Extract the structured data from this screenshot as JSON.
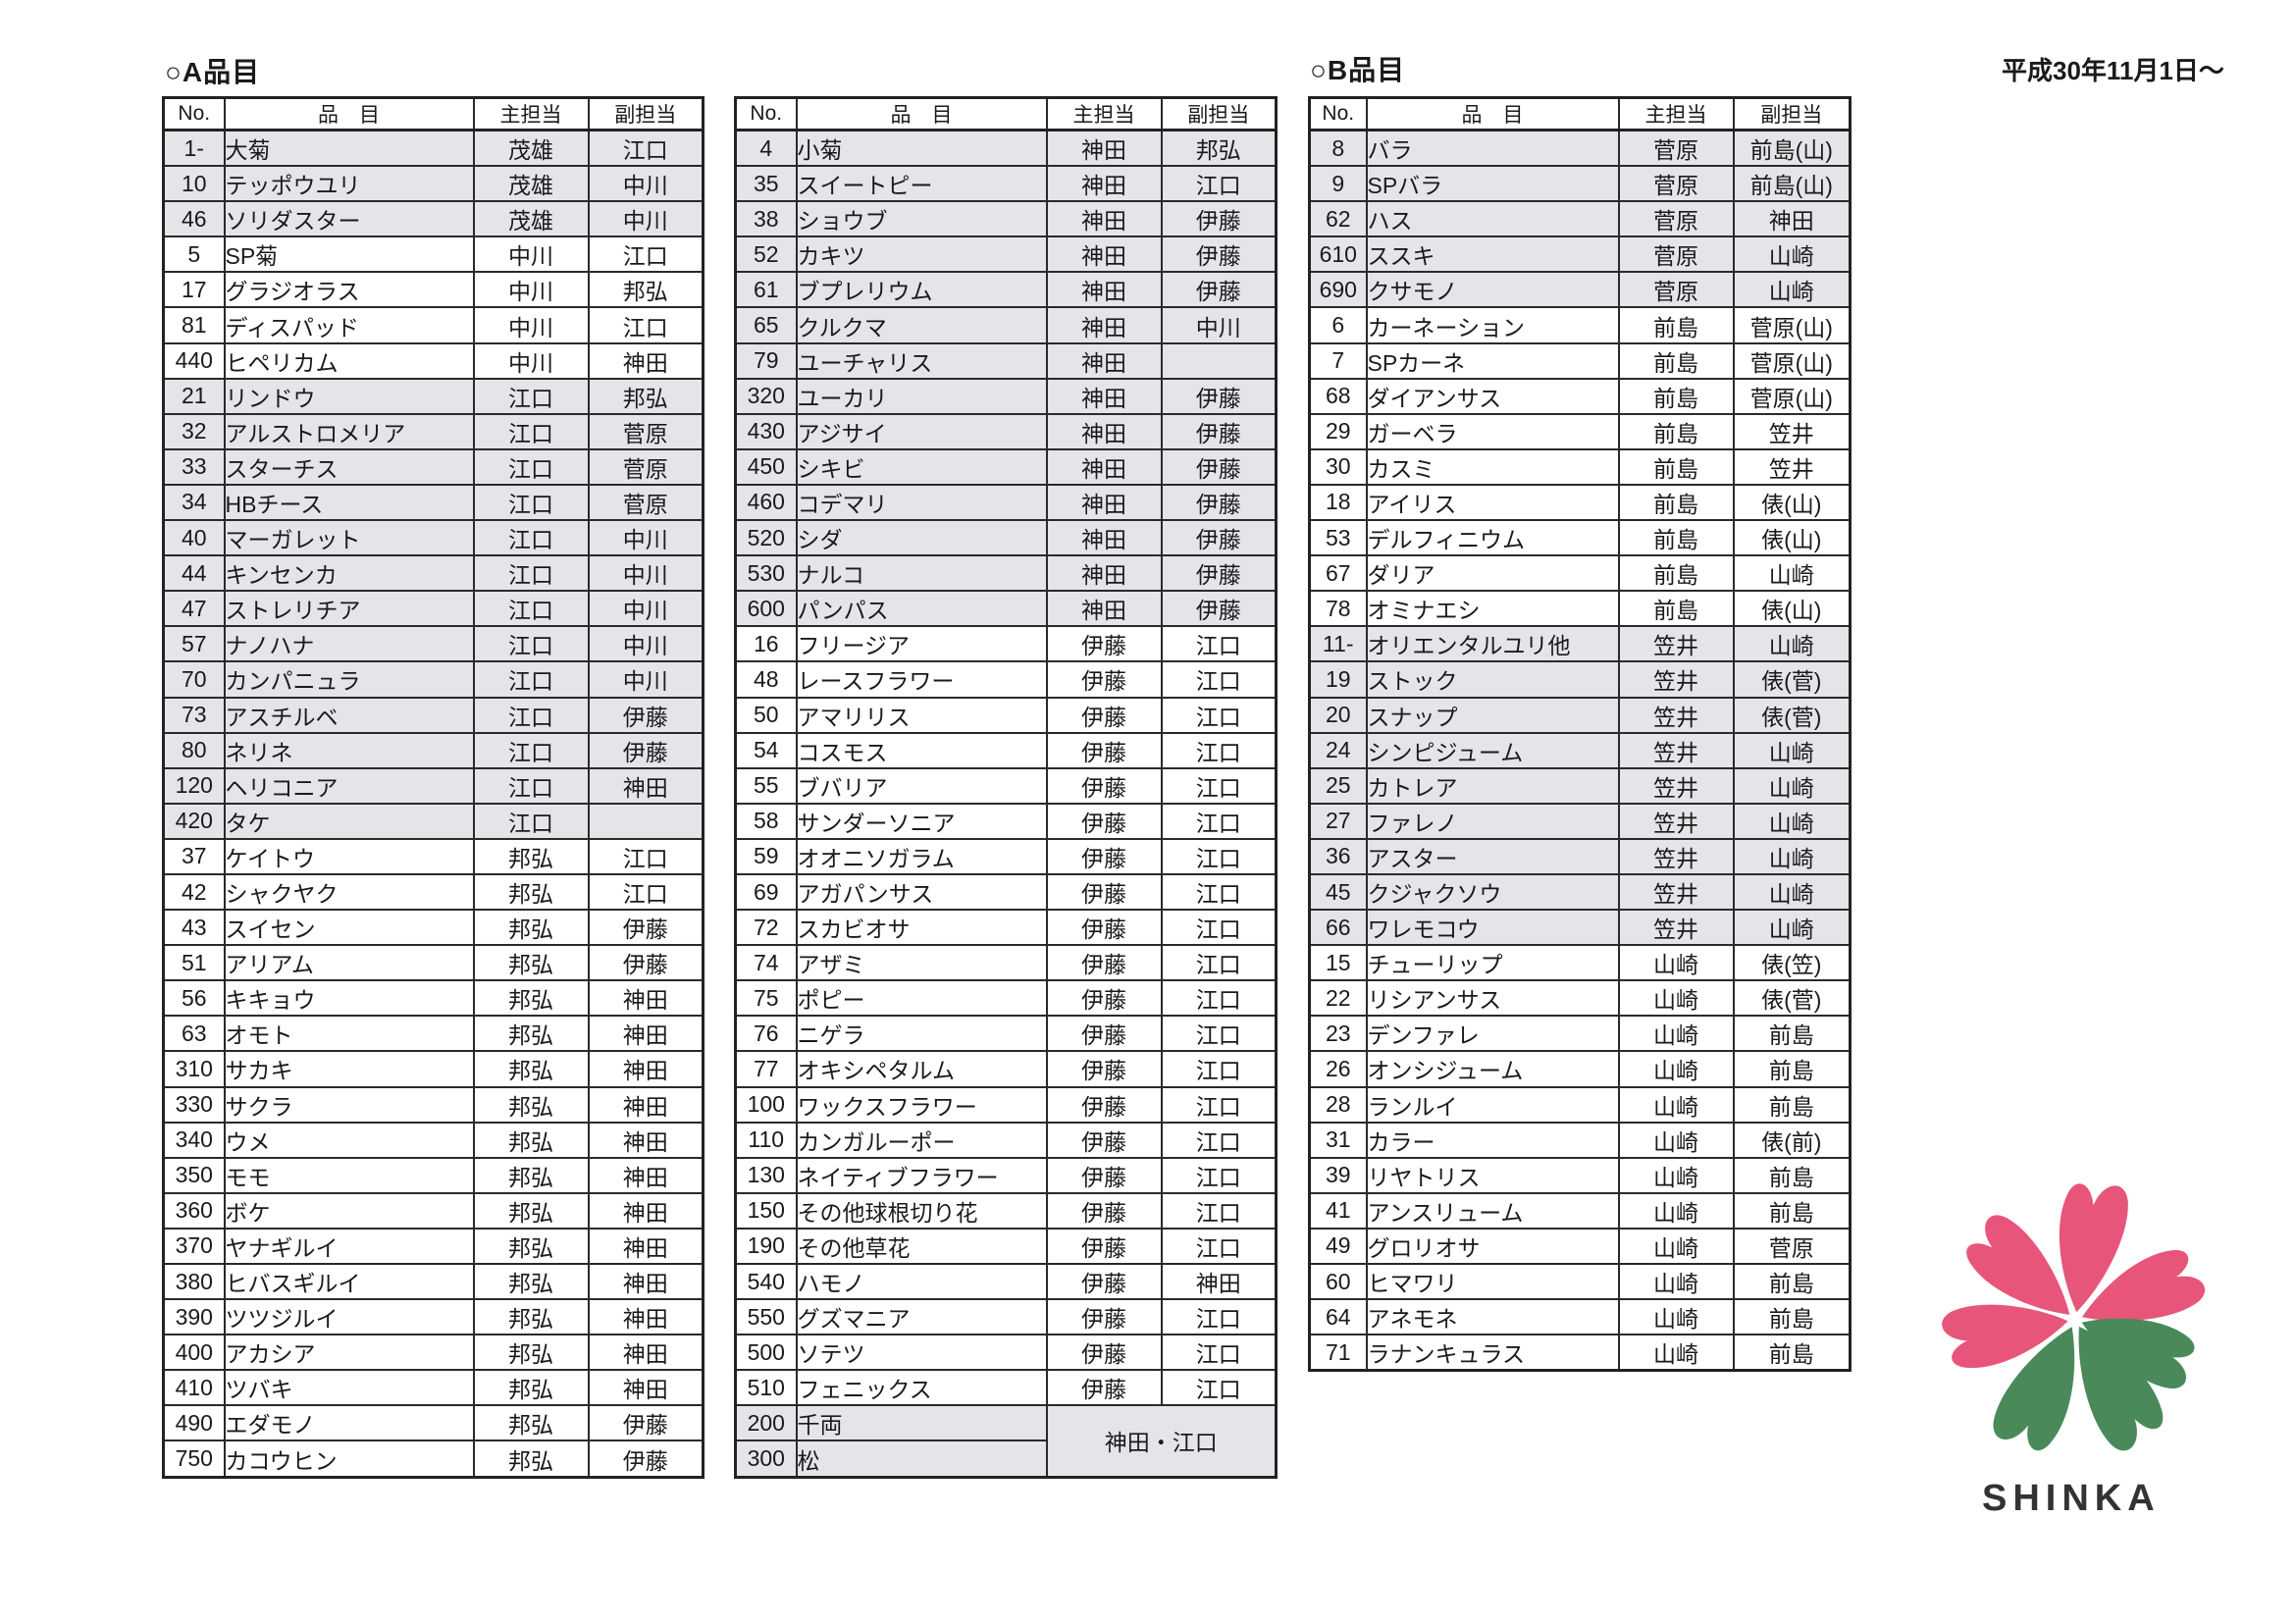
{
  "date_label": "平成30年11月1日～",
  "headers": [
    "No.",
    "品　目",
    "主担当",
    "副担当"
  ],
  "logo": {
    "text": "SHINKA",
    "colors": {
      "pink": "#e8557a",
      "green": "#4a8a5a"
    }
  },
  "tables": [
    {
      "title": "○A品目",
      "rows": [
        {
          "no": "1-",
          "item": "大菊",
          "main": "茂雄",
          "sub": "江口",
          "shaded": true
        },
        {
          "no": "10",
          "item": "テッポウユリ",
          "main": "茂雄",
          "sub": "中川",
          "shaded": true
        },
        {
          "no": "46",
          "item": "ソリダスター",
          "main": "茂雄",
          "sub": "中川",
          "shaded": true
        },
        {
          "no": "5",
          "item": "SP菊",
          "main": "中川",
          "sub": "江口",
          "shaded": false
        },
        {
          "no": "17",
          "item": "グラジオラス",
          "main": "中川",
          "sub": "邦弘",
          "shaded": false
        },
        {
          "no": "81",
          "item": "ディスパッド",
          "main": "中川",
          "sub": "江口",
          "shaded": false
        },
        {
          "no": "440",
          "item": "ヒペリカム",
          "main": "中川",
          "sub": "神田",
          "shaded": false
        },
        {
          "no": "21",
          "item": "リンドウ",
          "main": "江口",
          "sub": "邦弘",
          "shaded": true
        },
        {
          "no": "32",
          "item": "アルストロメリア",
          "main": "江口",
          "sub": "菅原",
          "shaded": true
        },
        {
          "no": "33",
          "item": "スターチス",
          "main": "江口",
          "sub": "菅原",
          "shaded": true
        },
        {
          "no": "34",
          "item": "HBチース",
          "main": "江口",
          "sub": "菅原",
          "shaded": true
        },
        {
          "no": "40",
          "item": "マーガレット",
          "main": "江口",
          "sub": "中川",
          "shaded": true
        },
        {
          "no": "44",
          "item": "キンセンカ",
          "main": "江口",
          "sub": "中川",
          "shaded": true
        },
        {
          "no": "47",
          "item": "ストレリチア",
          "main": "江口",
          "sub": "中川",
          "shaded": true
        },
        {
          "no": "57",
          "item": "ナノハナ",
          "main": "江口",
          "sub": "中川",
          "shaded": true
        },
        {
          "no": "70",
          "item": "カンパニュラ",
          "main": "江口",
          "sub": "中川",
          "shaded": true
        },
        {
          "no": "73",
          "item": "アスチルベ",
          "main": "江口",
          "sub": "伊藤",
          "shaded": true
        },
        {
          "no": "80",
          "item": "ネリネ",
          "main": "江口",
          "sub": "伊藤",
          "shaded": true
        },
        {
          "no": "120",
          "item": "ヘリコニア",
          "main": "江口",
          "sub": "神田",
          "shaded": true
        },
        {
          "no": "420",
          "item": "タケ",
          "main": "江口",
          "sub": "",
          "shaded": true
        },
        {
          "no": "37",
          "item": "ケイトウ",
          "main": "邦弘",
          "sub": "江口",
          "shaded": false
        },
        {
          "no": "42",
          "item": "シャクヤク",
          "main": "邦弘",
          "sub": "江口",
          "shaded": false
        },
        {
          "no": "43",
          "item": "スイセン",
          "main": "邦弘",
          "sub": "伊藤",
          "shaded": false
        },
        {
          "no": "51",
          "item": "アリアム",
          "main": "邦弘",
          "sub": "伊藤",
          "shaded": false
        },
        {
          "no": "56",
          "item": "キキョウ",
          "main": "邦弘",
          "sub": "神田",
          "shaded": false
        },
        {
          "no": "63",
          "item": "オモト",
          "main": "邦弘",
          "sub": "神田",
          "shaded": false
        },
        {
          "no": "310",
          "item": "サカキ",
          "main": "邦弘",
          "sub": "神田",
          "shaded": false
        },
        {
          "no": "330",
          "item": "サクラ",
          "main": "邦弘",
          "sub": "神田",
          "shaded": false
        },
        {
          "no": "340",
          "item": "ウメ",
          "main": "邦弘",
          "sub": "神田",
          "shaded": false
        },
        {
          "no": "350",
          "item": "モモ",
          "main": "邦弘",
          "sub": "神田",
          "shaded": false
        },
        {
          "no": "360",
          "item": "ボケ",
          "main": "邦弘",
          "sub": "神田",
          "shaded": false
        },
        {
          "no": "370",
          "item": "ヤナギルイ",
          "main": "邦弘",
          "sub": "神田",
          "shaded": false
        },
        {
          "no": "380",
          "item": "ヒバスギルイ",
          "main": "邦弘",
          "sub": "神田",
          "shaded": false
        },
        {
          "no": "390",
          "item": "ツツジルイ",
          "main": "邦弘",
          "sub": "神田",
          "shaded": false
        },
        {
          "no": "400",
          "item": "アカシア",
          "main": "邦弘",
          "sub": "神田",
          "shaded": false
        },
        {
          "no": "410",
          "item": "ツバキ",
          "main": "邦弘",
          "sub": "神田",
          "shaded": false
        },
        {
          "no": "490",
          "item": "エダモノ",
          "main": "邦弘",
          "sub": "伊藤",
          "shaded": false
        },
        {
          "no": "750",
          "item": "カコウヒン",
          "main": "邦弘",
          "sub": "伊藤",
          "shaded": false
        }
      ]
    },
    {
      "title": "",
      "merged_staff": "神田・江口",
      "rows": [
        {
          "no": "4",
          "item": "小菊",
          "main": "神田",
          "sub": "邦弘",
          "shaded": true
        },
        {
          "no": "35",
          "item": "スイートピー",
          "main": "神田",
          "sub": "江口",
          "shaded": true
        },
        {
          "no": "38",
          "item": "ショウブ",
          "main": "神田",
          "sub": "伊藤",
          "shaded": true
        },
        {
          "no": "52",
          "item": "カキツ",
          "main": "神田",
          "sub": "伊藤",
          "shaded": true
        },
        {
          "no": "61",
          "item": "ブプレリウム",
          "main": "神田",
          "sub": "伊藤",
          "shaded": true
        },
        {
          "no": "65",
          "item": "クルクマ",
          "main": "神田",
          "sub": "中川",
          "shaded": true
        },
        {
          "no": "79",
          "item": "ユーチャリス",
          "main": "神田",
          "sub": "",
          "shaded": true
        },
        {
          "no": "320",
          "item": "ユーカリ",
          "main": "神田",
          "sub": "伊藤",
          "shaded": true
        },
        {
          "no": "430",
          "item": "アジサイ",
          "main": "神田",
          "sub": "伊藤",
          "shaded": true
        },
        {
          "no": "450",
          "item": "シキビ",
          "main": "神田",
          "sub": "伊藤",
          "shaded": true
        },
        {
          "no": "460",
          "item": "コデマリ",
          "main": "神田",
          "sub": "伊藤",
          "shaded": true
        },
        {
          "no": "520",
          "item": "シダ",
          "main": "神田",
          "sub": "伊藤",
          "shaded": true
        },
        {
          "no": "530",
          "item": "ナルコ",
          "main": "神田",
          "sub": "伊藤",
          "shaded": true
        },
        {
          "no": "600",
          "item": "パンパス",
          "main": "神田",
          "sub": "伊藤",
          "shaded": true
        },
        {
          "no": "16",
          "item": "フリージア",
          "main": "伊藤",
          "sub": "江口",
          "shaded": false
        },
        {
          "no": "48",
          "item": "レースフラワー",
          "main": "伊藤",
          "sub": "江口",
          "shaded": false
        },
        {
          "no": "50",
          "item": "アマリリス",
          "main": "伊藤",
          "sub": "江口",
          "shaded": false
        },
        {
          "no": "54",
          "item": "コスモス",
          "main": "伊藤",
          "sub": "江口",
          "shaded": false
        },
        {
          "no": "55",
          "item": "ブバリア",
          "main": "伊藤",
          "sub": "江口",
          "shaded": false
        },
        {
          "no": "58",
          "item": "サンダーソニア",
          "main": "伊藤",
          "sub": "江口",
          "shaded": false
        },
        {
          "no": "59",
          "item": "オオニソガラム",
          "main": "伊藤",
          "sub": "江口",
          "shaded": false
        },
        {
          "no": "69",
          "item": "アガパンサス",
          "main": "伊藤",
          "sub": "江口",
          "shaded": false
        },
        {
          "no": "72",
          "item": "スカビオサ",
          "main": "伊藤",
          "sub": "江口",
          "shaded": false
        },
        {
          "no": "74",
          "item": "アザミ",
          "main": "伊藤",
          "sub": "江口",
          "shaded": false
        },
        {
          "no": "75",
          "item": "ポピー",
          "main": "伊藤",
          "sub": "江口",
          "shaded": false
        },
        {
          "no": "76",
          "item": "ニゲラ",
          "main": "伊藤",
          "sub": "江口",
          "shaded": false
        },
        {
          "no": "77",
          "item": "オキシペタルム",
          "main": "伊藤",
          "sub": "江口",
          "shaded": false
        },
        {
          "no": "100",
          "item": "ワックスフラワー",
          "main": "伊藤",
          "sub": "江口",
          "shaded": false
        },
        {
          "no": "110",
          "item": "カンガルーポー",
          "main": "伊藤",
          "sub": "江口",
          "shaded": false
        },
        {
          "no": "130",
          "item": "ネイティブフラワー",
          "main": "伊藤",
          "sub": "江口",
          "shaded": false
        },
        {
          "no": "150",
          "item": "その他球根切り花",
          "main": "伊藤",
          "sub": "江口",
          "shaded": false
        },
        {
          "no": "190",
          "item": "その他草花",
          "main": "伊藤",
          "sub": "江口",
          "shaded": false
        },
        {
          "no": "540",
          "item": "ハモノ",
          "main": "伊藤",
          "sub": "神田",
          "shaded": false
        },
        {
          "no": "550",
          "item": "グズマニア",
          "main": "伊藤",
          "sub": "江口",
          "shaded": false
        },
        {
          "no": "500",
          "item": "ソテツ",
          "main": "伊藤",
          "sub": "江口",
          "shaded": false
        },
        {
          "no": "510",
          "item": "フェニックス",
          "main": "伊藤",
          "sub": "江口",
          "shaded": false
        },
        {
          "no": "200",
          "item": "千両",
          "merged": true,
          "shaded": true
        },
        {
          "no": "300",
          "item": "松",
          "merged": true,
          "shaded": true
        }
      ]
    },
    {
      "title": "○B品目",
      "rows": [
        {
          "no": "8",
          "item": "バラ",
          "main": "菅原",
          "sub": "前島(山)",
          "shaded": true
        },
        {
          "no": "9",
          "item": "SPバラ",
          "main": "菅原",
          "sub": "前島(山)",
          "shaded": true
        },
        {
          "no": "62",
          "item": "ハス",
          "main": "菅原",
          "sub": "神田",
          "shaded": true
        },
        {
          "no": "610",
          "item": "ススキ",
          "main": "菅原",
          "sub": "山崎",
          "shaded": true
        },
        {
          "no": "690",
          "item": "クサモノ",
          "main": "菅原",
          "sub": "山崎",
          "shaded": true
        },
        {
          "no": "6",
          "item": "カーネーション",
          "main": "前島",
          "sub": "菅原(山)",
          "shaded": false
        },
        {
          "no": "7",
          "item": "SPカーネ",
          "main": "前島",
          "sub": "菅原(山)",
          "shaded": false
        },
        {
          "no": "68",
          "item": "ダイアンサス",
          "main": "前島",
          "sub": "菅原(山)",
          "shaded": false
        },
        {
          "no": "29",
          "item": "ガーベラ",
          "main": "前島",
          "sub": "笠井",
          "shaded": false
        },
        {
          "no": "30",
          "item": "カスミ",
          "main": "前島",
          "sub": "笠井",
          "shaded": false
        },
        {
          "no": "18",
          "item": "アイリス",
          "main": "前島",
          "sub": "俵(山)",
          "shaded": false
        },
        {
          "no": "53",
          "item": "デルフィニウム",
          "main": "前島",
          "sub": "俵(山)",
          "shaded": false
        },
        {
          "no": "67",
          "item": "ダリア",
          "main": "前島",
          "sub": "山崎",
          "shaded": false
        },
        {
          "no": "78",
          "item": "オミナエシ",
          "main": "前島",
          "sub": "俵(山)",
          "shaded": false
        },
        {
          "no": "11-",
          "item": "オリエンタルユリ他",
          "main": "笠井",
          "sub": "山崎",
          "shaded": true
        },
        {
          "no": "19",
          "item": "ストック",
          "main": "笠井",
          "sub": "俵(菅)",
          "shaded": true
        },
        {
          "no": "20",
          "item": "スナップ",
          "main": "笠井",
          "sub": "俵(菅)",
          "shaded": true
        },
        {
          "no": "24",
          "item": "シンピジューム",
          "main": "笠井",
          "sub": "山崎",
          "shaded": true
        },
        {
          "no": "25",
          "item": "カトレア",
          "main": "笠井",
          "sub": "山崎",
          "shaded": true
        },
        {
          "no": "27",
          "item": "ファレノ",
          "main": "笠井",
          "sub": "山崎",
          "shaded": true
        },
        {
          "no": "36",
          "item": "アスター",
          "main": "笠井",
          "sub": "山崎",
          "shaded": true
        },
        {
          "no": "45",
          "item": "クジャクソウ",
          "main": "笠井",
          "sub": "山崎",
          "shaded": true
        },
        {
          "no": "66",
          "item": "ワレモコウ",
          "main": "笠井",
          "sub": "山崎",
          "shaded": true
        },
        {
          "no": "15",
          "item": "チューリップ",
          "main": "山崎",
          "sub": "俵(笠)",
          "shaded": false
        },
        {
          "no": "22",
          "item": "リシアンサス",
          "main": "山崎",
          "sub": "俵(菅)",
          "shaded": false
        },
        {
          "no": "23",
          "item": "デンファレ",
          "main": "山崎",
          "sub": "前島",
          "shaded": false
        },
        {
          "no": "26",
          "item": "オンシジューム",
          "main": "山崎",
          "sub": "前島",
          "shaded": false
        },
        {
          "no": "28",
          "item": "ランルイ",
          "main": "山崎",
          "sub": "前島",
          "shaded": false
        },
        {
          "no": "31",
          "item": "カラー",
          "main": "山崎",
          "sub": "俵(前)",
          "shaded": false
        },
        {
          "no": "39",
          "item": "リヤトリス",
          "main": "山崎",
          "sub": "前島",
          "shaded": false
        },
        {
          "no": "41",
          "item": "アンスリューム",
          "main": "山崎",
          "sub": "前島",
          "shaded": false
        },
        {
          "no": "49",
          "item": "グロリオサ",
          "main": "山崎",
          "sub": "菅原",
          "shaded": false
        },
        {
          "no": "60",
          "item": "ヒマワリ",
          "main": "山崎",
          "sub": "前島",
          "shaded": false
        },
        {
          "no": "64",
          "item": "アネモネ",
          "main": "山崎",
          "sub": "前島",
          "shaded": false
        },
        {
          "no": "71",
          "item": "ラナンキュラス",
          "main": "山崎",
          "sub": "前島",
          "shaded": false
        }
      ]
    }
  ]
}
